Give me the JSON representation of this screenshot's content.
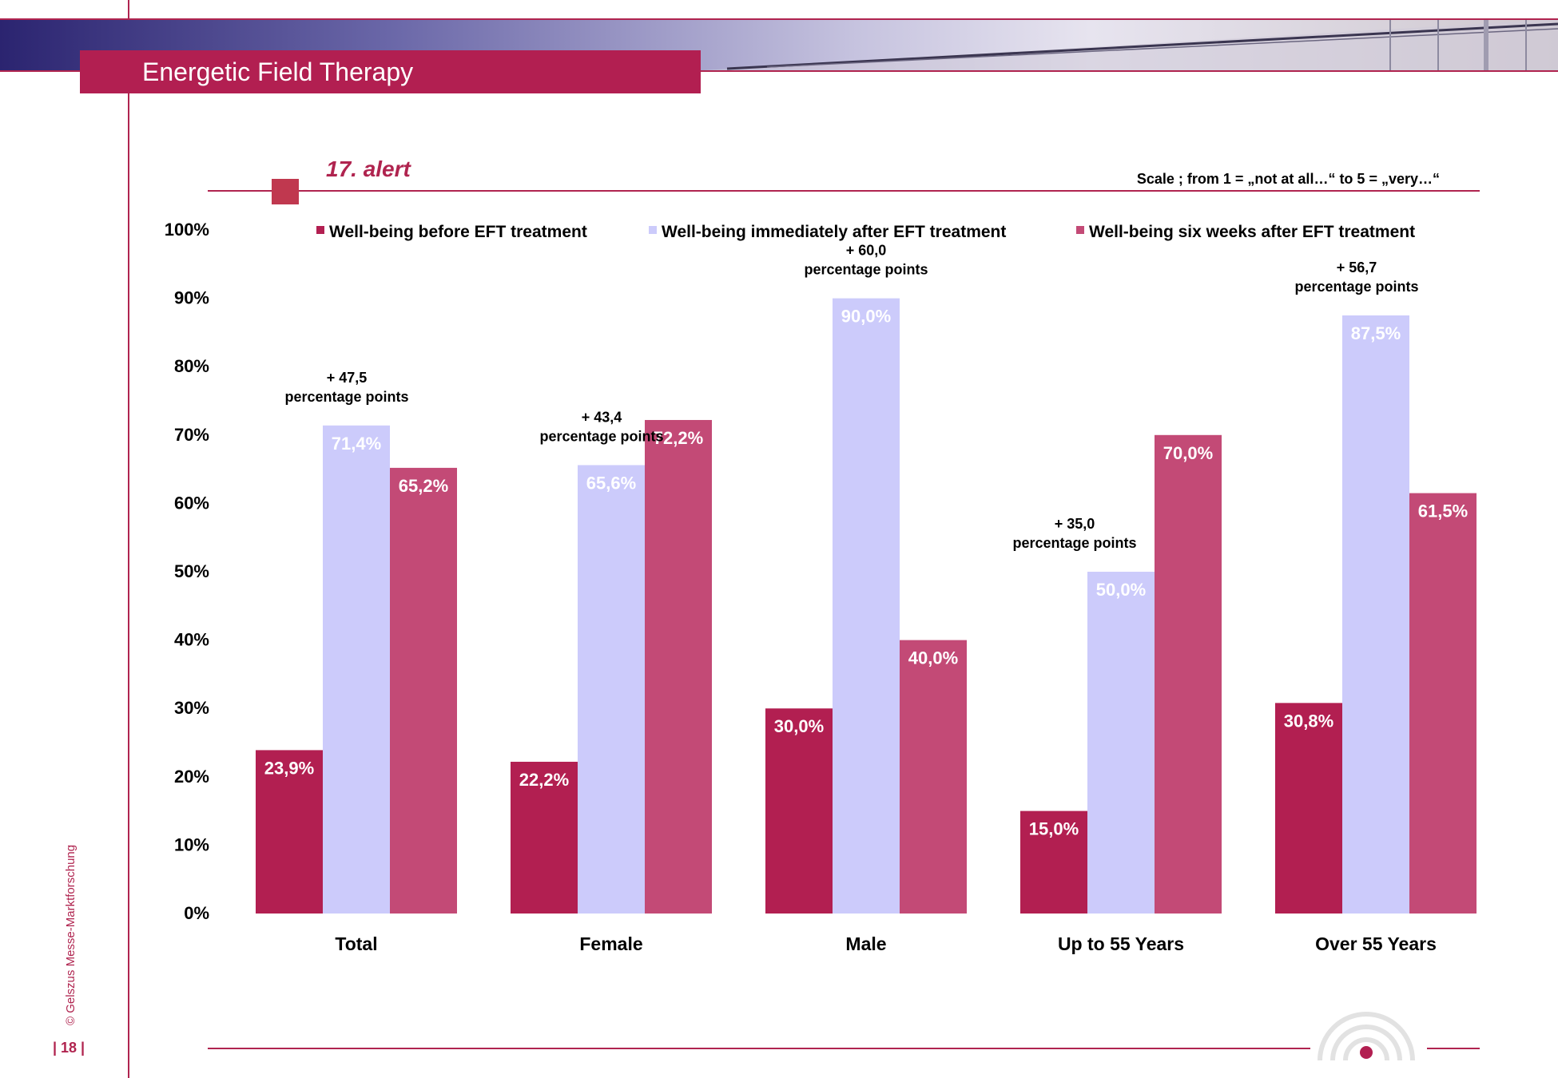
{
  "header": {
    "title": "Energetic Field Therapy"
  },
  "section": {
    "subtitle": "17. alert",
    "scale_note": "Scale ; from 1 = „not at all…“  to 5 = „very…“"
  },
  "footer": {
    "page_number": "| 18 |",
    "copyright": "© Gelszus Messe-Marktforschung"
  },
  "colors": {
    "brand": "#b21f51",
    "before": "#b21f51",
    "immediately": "#cccbfb",
    "six_weeks": "#c34a76"
  },
  "chart_data": {
    "type": "bar",
    "categories": [
      "Total",
      "Female",
      "Male",
      "Up to 55 Years",
      "Over 55 Years"
    ],
    "series": [
      {
        "name": "Well-being before EFT treatment",
        "values": [
          23.9,
          22.2,
          30.0,
          15.0,
          30.8
        ],
        "labels": [
          "23,9%",
          "22,2%",
          "30,0%",
          "15,0%",
          "30,8%"
        ]
      },
      {
        "name": "Well-being immediately after EFT treatment",
        "values": [
          71.4,
          65.6,
          90.0,
          50.0,
          87.5
        ],
        "labels": [
          "71,4%",
          "65,6%",
          "90,0%",
          "50,0%",
          "87,5%"
        ]
      },
      {
        "name": "Well-being six weeks after EFT treatment",
        "values": [
          65.2,
          72.2,
          40.0,
          70.0,
          61.5
        ],
        "labels": [
          "65,2%",
          "72,2%",
          "40,0%",
          "70,0%",
          "61,5%"
        ]
      }
    ],
    "annotations": [
      {
        "category": "Total",
        "line1": "+ 47,5",
        "line2": "percentage points"
      },
      {
        "category": "Female",
        "line1": "+ 43,4",
        "line2": "percentage points"
      },
      {
        "category": "Male",
        "line1": "+ 60,0",
        "line2": "percentage points"
      },
      {
        "category": "Up to 55 Years",
        "line1": "+ 35,0",
        "line2": "percentage points"
      },
      {
        "category": "Over 55 Years",
        "line1": "+ 56,7",
        "line2": "percentage points"
      }
    ],
    "yticks": [
      "0%",
      "10%",
      "20%",
      "30%",
      "40%",
      "50%",
      "60%",
      "70%",
      "80%",
      "90%",
      "100%"
    ],
    "ylim": [
      0,
      100
    ],
    "legend_position": "top",
    "grid": false
  }
}
